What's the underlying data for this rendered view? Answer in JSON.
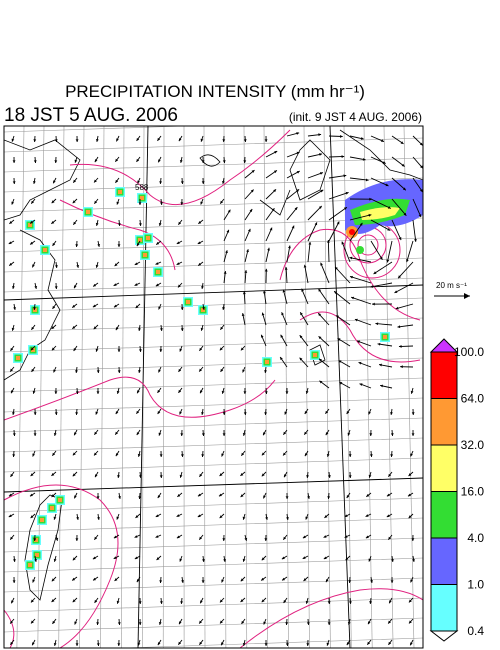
{
  "header": {
    "title": "PRECIPITATION INTENSITY (mm hr⁻¹)",
    "valid_time": "18 JST 5 AUG. 2006",
    "init_time": "(init. 9 JST 4 AUG. 2006)"
  },
  "map": {
    "reference_vector": "20 m s⁻¹",
    "contour_label": "588"
  },
  "colorbar": {
    "levels": [
      {
        "label": "100.0",
        "color": "#ff0000"
      },
      {
        "label": "64.0",
        "color": "#ff9933"
      },
      {
        "label": "32.0",
        "color": "#ffff66"
      },
      {
        "label": "16.0",
        "color": "#33dd33"
      },
      {
        "label": "4.0",
        "color": "#6666ff"
      },
      {
        "label": "1.0",
        "color": "#66ffff"
      },
      {
        "label": "0.4",
        "color": "#ffffff"
      }
    ],
    "over_color": "#cc33ff"
  }
}
